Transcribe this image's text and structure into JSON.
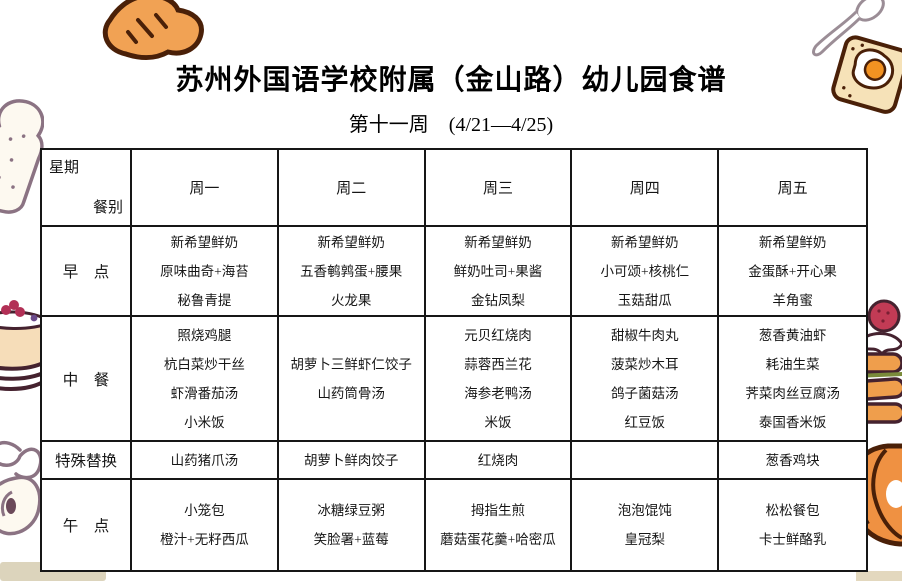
{
  "page": {
    "title": "苏州外国语学校附属（金山路）幼儿园食谱",
    "subtitle": "第十一周　(4/21—4/25)"
  },
  "table": {
    "corner_top": "星期",
    "corner_bottom": "餐别",
    "day_headers": [
      "周一",
      "周二",
      "周三",
      "周四",
      "周五"
    ],
    "rows": [
      {
        "label": "早　点",
        "cells": [
          [
            "新希望鲜奶",
            "原味曲奇+海苔",
            "秘鲁青提"
          ],
          [
            "新希望鲜奶",
            "五香鹌鹑蛋+腰果",
            "火龙果"
          ],
          [
            "新希望鲜奶",
            "鲜奶吐司+果酱",
            "金钻凤梨"
          ],
          [
            "新希望鲜奶",
            "小可颂+核桃仁",
            "玉菇甜瓜"
          ],
          [
            "新希望鲜奶",
            "金蛋酥+开心果",
            "羊角蜜"
          ]
        ]
      },
      {
        "label": "中　餐",
        "cells": [
          [
            "照烧鸡腿",
            "杭白菜炒干丝",
            "虾滑番茄汤",
            "小米饭"
          ],
          [
            "胡萝卜三鲜虾仁饺子",
            "山药筒骨汤"
          ],
          [
            "元贝红烧肉",
            "蒜蓉西兰花",
            "海参老鸭汤",
            "米饭"
          ],
          [
            "甜椒牛肉丸",
            "菠菜炒木耳",
            "鸽子菌菇汤",
            "红豆饭"
          ],
          [
            "葱香黄油虾",
            "耗油生菜",
            "荠菜肉丝豆腐汤",
            "泰国香米饭"
          ]
        ]
      },
      {
        "label": "特殊替换",
        "cells": [
          [
            "山药猪爪汤"
          ],
          [
            "胡萝卜鲜肉饺子"
          ],
          [
            "红烧肉"
          ],
          [],
          [
            "葱香鸡块"
          ]
        ]
      },
      {
        "label": "午　点",
        "cells": [
          [
            "小笼包",
            "橙汁+无籽西瓜"
          ],
          [
            "冰糖绿豆粥",
            "笑脸署+蓝莓"
          ],
          [
            "拇指生煎",
            "蘑菇蛋花羹+哈密瓜"
          ],
          [
            "泡泡馄饨",
            "皇冠梨"
          ],
          [
            "松松餐包",
            "卡士鲜酪乳"
          ]
        ]
      }
    ]
  },
  "decorations": [
    "bread-bun-illustration",
    "spoon-illustration",
    "toast-egg-illustration",
    "bread-slice-illustration",
    "berry-cake-illustration",
    "pancake-berry-illustration",
    "fruit-doodle-illustration",
    "croissant-illustration"
  ],
  "colors": {
    "outline_brown": "#4A2008",
    "fill_orange": "#F1A254",
    "line_art_grey": "#8B7383",
    "table_border": "#161616",
    "tan_strip": "#DCD4BC",
    "berry_red": "#C23B55",
    "egg_yolk": "#F29222"
  }
}
